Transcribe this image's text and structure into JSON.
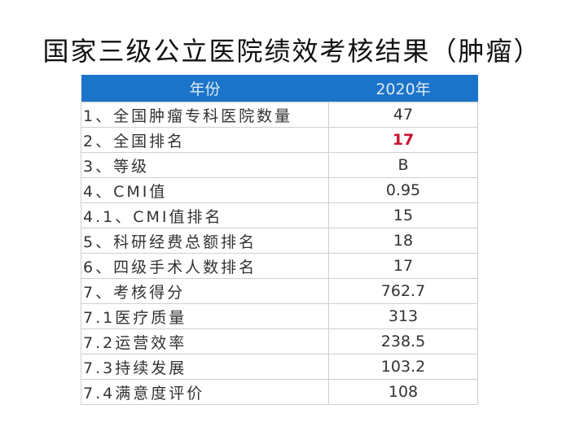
{
  "title": "国家三级公立医院绩效考核结果（肿瘤）",
  "header": {
    "col1": "年份",
    "col2": "2020年"
  },
  "colors": {
    "header_bg": "#1b74c9",
    "highlight": "#c8102e"
  },
  "rows": [
    {
      "label": "1、全国肿瘤专科医院数量",
      "value": "47"
    },
    {
      "label": "2、全国排名",
      "value": "17",
      "highlight": true
    },
    {
      "label": "3、等级",
      "value": "B"
    },
    {
      "label": "4、CMI值",
      "value": "0.95"
    },
    {
      "label": "4.1、CMI值排名",
      "value": "15"
    },
    {
      "label": "5、科研经费总额排名",
      "value": "18"
    },
    {
      "label": "6、四级手术人数排名",
      "value": "17"
    },
    {
      "label": "7、考核得分",
      "value": "762.7"
    },
    {
      "label": "7.1医疗质量",
      "value": "313"
    },
    {
      "label": "7.2运营效率",
      "value": "238.5"
    },
    {
      "label": "7.3持续发展",
      "value": "103.2"
    },
    {
      "label": "7.4满意度评价",
      "value": "108"
    }
  ]
}
